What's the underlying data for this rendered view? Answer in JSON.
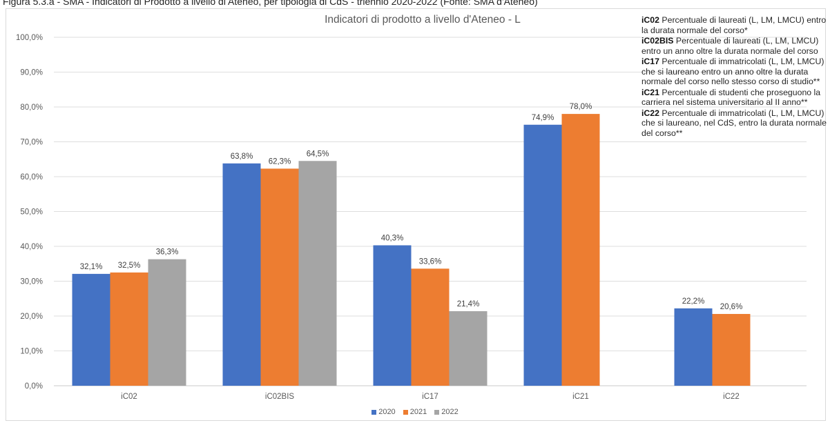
{
  "figure": {
    "caption": "Figura 5.3.a - SMA - Indicatori di Prodotto a livello di Ateneo, per tipologia di CdS - triennio 2020-2022 (Fonte: SMA d'Ateneo)"
  },
  "chart_data": {
    "type": "bar",
    "title": "Indicatori di prodotto a livello d'Ateneo - L",
    "xlabel": "",
    "ylabel": "",
    "categories": [
      "iC02",
      "iC02BIS",
      "iC17",
      "iC21",
      "iC22"
    ],
    "series": [
      {
        "name": "2020",
        "color": "#4472c4",
        "values": [
          32.1,
          63.8,
          40.3,
          74.9,
          22.2
        ],
        "labels": [
          "32,1%",
          "63,8%",
          "40,3%",
          "74,9%",
          "22,2%"
        ]
      },
      {
        "name": "2021",
        "color": "#ed7d31",
        "values": [
          32.5,
          62.3,
          33.6,
          78.0,
          20.6
        ],
        "labels": [
          "32,5%",
          "62,3%",
          "33,6%",
          "78,0%",
          "20,6%"
        ]
      },
      {
        "name": "2022",
        "color": "#a5a5a5",
        "values": [
          36.3,
          64.5,
          21.4,
          null,
          null
        ],
        "labels": [
          "36,3%",
          "64,5%",
          "21,4%",
          null,
          null
        ]
      }
    ],
    "ylim": [
      0,
      100
    ],
    "yticks": [
      0,
      10,
      20,
      30,
      40,
      50,
      60,
      70,
      80,
      90,
      100
    ],
    "ytick_labels": [
      "0,0%",
      "10,0%",
      "20,0%",
      "30,0%",
      "40,0%",
      "50,0%",
      "60,0%",
      "70,0%",
      "80,0%",
      "90,0%",
      "100,0%"
    ],
    "grid": true,
    "legend": "bottom"
  },
  "notes": [
    {
      "code": "iC02",
      "text": "Percentuale di laureati (L, LM, LMCU) entro la durata normale del corso*"
    },
    {
      "code": "iC02BIS",
      "text": "Percentuale di laureati (L, LM, LMCU) entro un anno oltre la durata normale del corso"
    },
    {
      "code": "iC17",
      "text": "Percentuale di immatricolati (L, LM, LMCU) che si laureano entro un anno oltre la durata normale del corso nello stesso corso di studio**"
    },
    {
      "code": "iC21",
      "text": "Percentuale di studenti che proseguono la carriera nel sistema universitario al II anno**"
    },
    {
      "code": "iC22",
      "text": "Percentuale di immatricolati (L, LM, LMCU) che si laureano, nel CdS, entro la durata normale del corso**"
    }
  ]
}
